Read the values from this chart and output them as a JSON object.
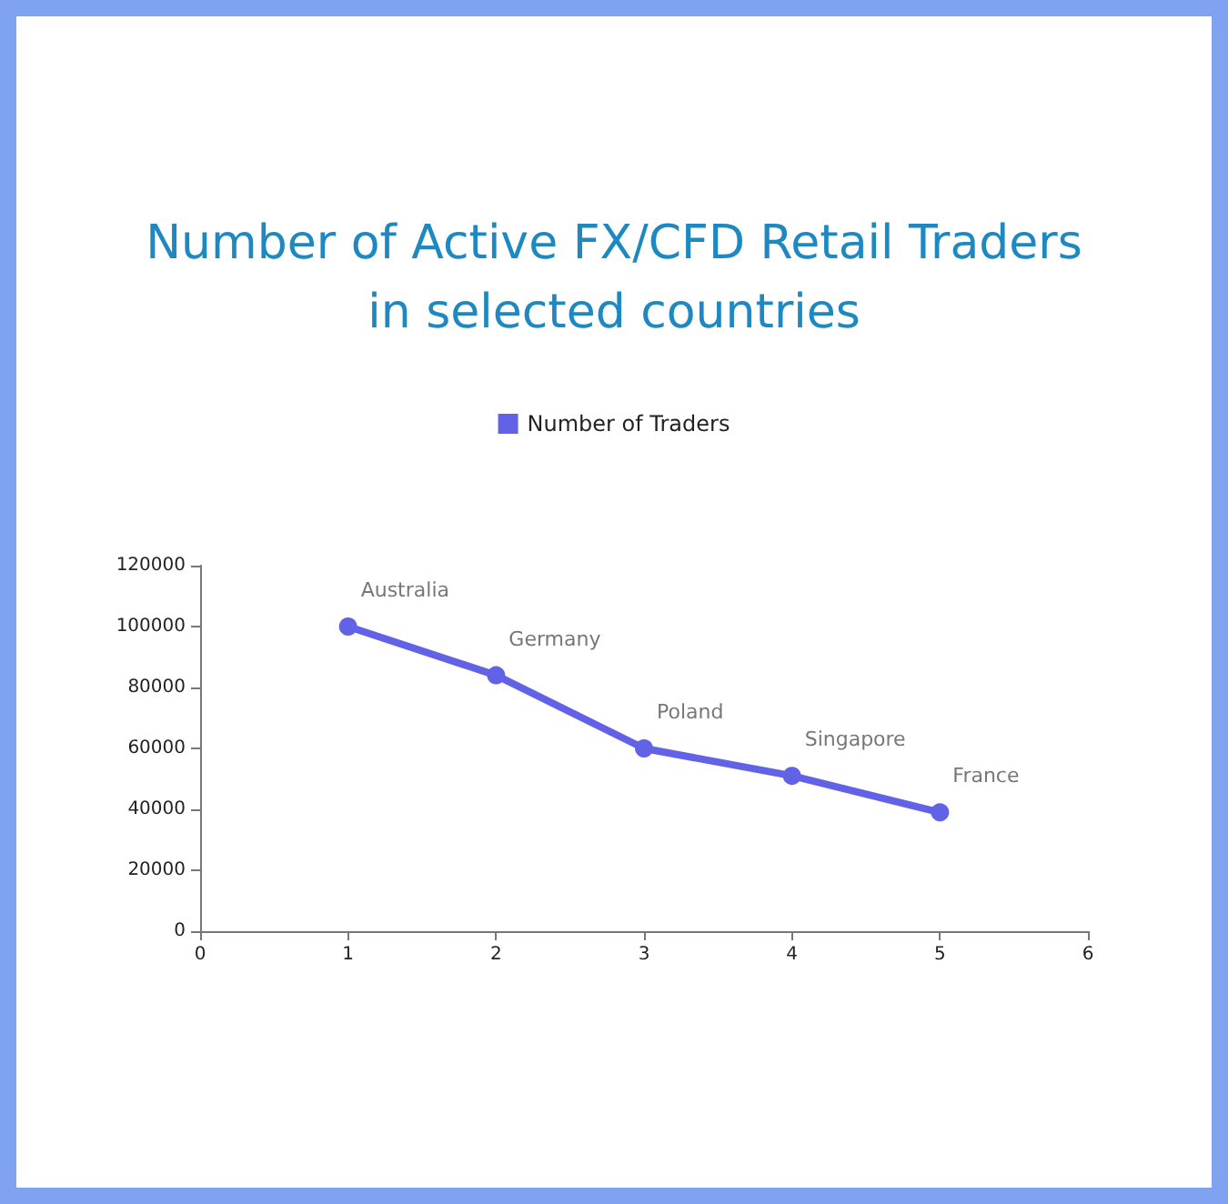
{
  "chart_data": {
    "type": "line",
    "title": "Number of Active FX/CFD Retail Traders\nin selected countries",
    "x": [
      1,
      2,
      3,
      4,
      5
    ],
    "series": [
      {
        "name": "Number of Traders",
        "color": "#6262e6",
        "values": [
          100000,
          84000,
          60000,
          51000,
          39000
        ]
      }
    ],
    "xlim": [
      0,
      6
    ],
    "xticks": [
      0,
      1,
      2,
      3,
      4,
      5,
      6
    ],
    "ylim": [
      0,
      120000
    ],
    "yticks": [
      0,
      20000,
      40000,
      60000,
      80000,
      100000,
      120000
    ],
    "annotations": [
      {
        "text": "Australia",
        "x": 1,
        "y": 100000
      },
      {
        "text": "Germany",
        "x": 2,
        "y": 84000
      },
      {
        "text": "Poland",
        "x": 3,
        "y": 60000
      },
      {
        "text": "Singapore",
        "x": 4,
        "y": 51000
      },
      {
        "text": "France",
        "x": 5,
        "y": 39000
      }
    ],
    "grid": false,
    "legend": "top",
    "marker": "circle",
    "line_style": "solid"
  }
}
